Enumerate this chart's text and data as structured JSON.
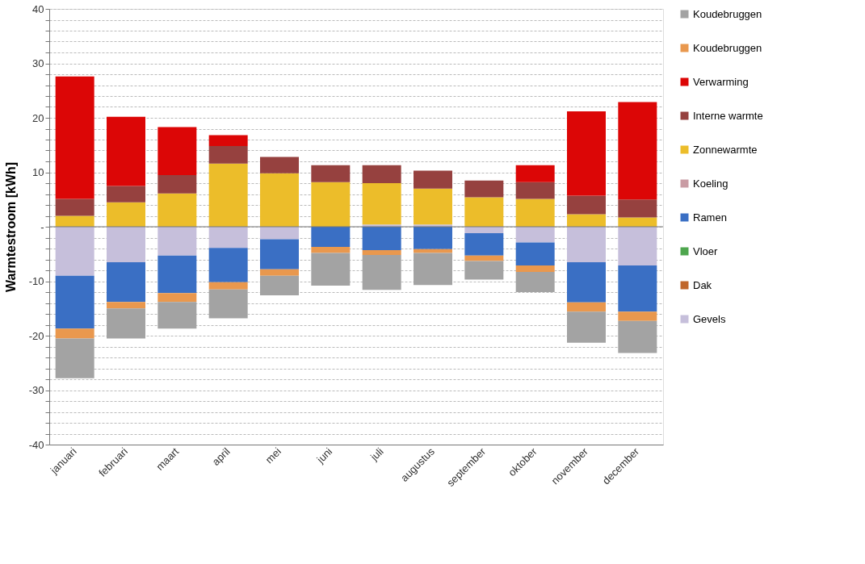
{
  "chart_data": {
    "type": "bar",
    "stacked": true,
    "ylabel": "Warmtestroom [kWh]",
    "categories": [
      "januari",
      "februari",
      "maart",
      "april",
      "mei",
      "juni",
      "juli",
      "augustus",
      "september",
      "oktober",
      "november",
      "december"
    ],
    "series": [
      {
        "name": "Gevels",
        "color": "#c6bfdb",
        "values": [
          -9.0,
          -6.5,
          -5.3,
          -3.9,
          -2.3,
          null,
          0.4,
          0.4,
          -1.2,
          -2.9,
          -6.5,
          -7.1
        ]
      },
      {
        "name": "Dak",
        "color": "#c0662a",
        "values": [
          null,
          null,
          null,
          null,
          null,
          null,
          null,
          null,
          null,
          null,
          null,
          null
        ]
      },
      {
        "name": "Vloer",
        "color": "#4ea64e",
        "values": [
          null,
          null,
          null,
          null,
          null,
          null,
          null,
          null,
          null,
          null,
          null,
          null
        ]
      },
      {
        "name": "Ramen",
        "color": "#3a6fc4",
        "values": [
          -9.7,
          -7.3,
          -6.9,
          -6.3,
          -5.5,
          -3.7,
          -4.3,
          -4.1,
          -4.1,
          -4.2,
          -7.4,
          -8.5
        ]
      },
      {
        "name": "Koeling",
        "color": "#c99ca4",
        "values": [
          null,
          null,
          null,
          null,
          null,
          null,
          null,
          null,
          null,
          null,
          null,
          null
        ]
      },
      {
        "name": "Zonnewarmte",
        "color": "#ecbd2a",
        "values": [
          2.0,
          4.5,
          6.1,
          11.6,
          9.8,
          8.2,
          7.6,
          6.6,
          5.4,
          5.1,
          2.3,
          1.7
        ]
      },
      {
        "name": "Interne warmte",
        "color": "#96413f",
        "values": [
          3.1,
          3.0,
          3.4,
          3.2,
          3.0,
          3.1,
          3.3,
          3.3,
          3.1,
          3.1,
          3.4,
          3.3
        ]
      },
      {
        "name": "Verwarming",
        "color": "#dc0606",
        "values": [
          22.5,
          12.7,
          8.8,
          2.0,
          null,
          null,
          null,
          null,
          null,
          3.1,
          15.5,
          17.9
        ]
      },
      {
        "name": "Koudebruggen",
        "color": "#e9984e",
        "values": [
          -1.8,
          -1.2,
          -1.6,
          -1.3,
          -1.2,
          -1.1,
          -0.9,
          -0.7,
          -1.0,
          -1.2,
          -1.7,
          -1.7
        ]
      },
      {
        "name": "Koudebruggen",
        "color": "#a3a3a3",
        "values": [
          -7.3,
          -5.5,
          -4.9,
          -5.3,
          -3.6,
          -6.0,
          -6.4,
          -5.9,
          -3.4,
          -3.7,
          -5.7,
          -5.9
        ]
      }
    ],
    "ylim": [
      -40,
      40
    ],
    "yticks": [
      -40,
      {
        "value": -38,
        "label": null
      },
      {
        "value": -36,
        "label": null
      },
      {
        "value": -34,
        "label": null
      },
      {
        "value": -32,
        "label": null
      },
      -30,
      {
        "value": -28,
        "label": null
      },
      {
        "value": -26,
        "label": null
      },
      {
        "value": -24,
        "label": null
      },
      {
        "value": -22,
        "label": null
      },
      -20,
      {
        "value": -18,
        "label": null
      },
      {
        "value": -16,
        "label": null
      },
      {
        "value": -14,
        "label": null
      },
      {
        "value": -12,
        "label": null
      },
      -10,
      {
        "value": -8,
        "label": null
      },
      {
        "value": -6,
        "label": null
      },
      {
        "value": -4,
        "label": null
      },
      {
        "value": -2,
        "label": null
      },
      {
        "value": 0,
        "label": "-"
      },
      {
        "value": 2,
        "label": null
      },
      {
        "value": 4,
        "label": null
      },
      {
        "value": 6,
        "label": null
      },
      {
        "value": 8,
        "label": null
      },
      10,
      {
        "value": 12,
        "label": null
      },
      {
        "value": 14,
        "label": null
      },
      {
        "value": 16,
        "label": null
      },
      {
        "value": 18,
        "label": null
      },
      20,
      {
        "value": 22,
        "label": null
      },
      {
        "value": 24,
        "label": null
      },
      {
        "value": 26,
        "label": null
      },
      {
        "value": 28,
        "label": null
      },
      30,
      {
        "value": 32,
        "label": null
      },
      {
        "value": 34,
        "label": null
      },
      {
        "value": 36,
        "label": null
      },
      {
        "value": 38,
        "label": null
      },
      40
    ],
    "grid": "y",
    "legend": "right"
  }
}
